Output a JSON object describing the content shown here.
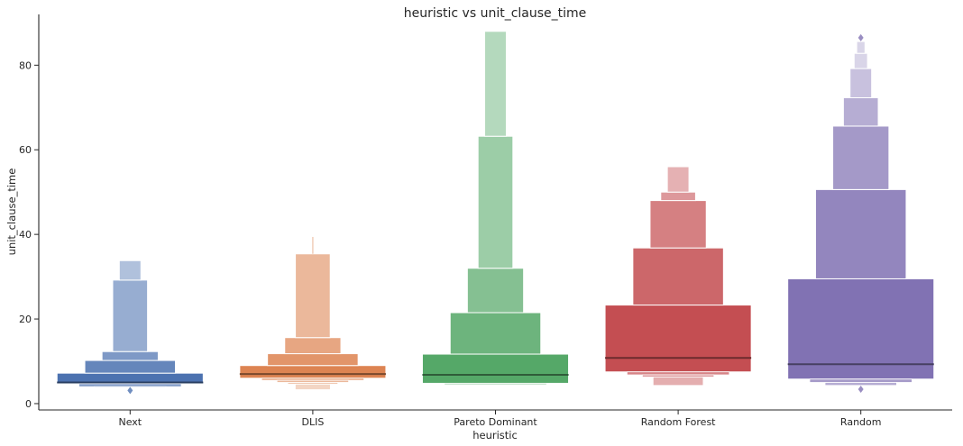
{
  "chart_data": {
    "type": "boxen",
    "title": "heuristic vs unit_clause_time",
    "xlabel": "heuristic",
    "ylabel": "unit_clause_time",
    "ylim": [
      -1.5,
      92
    ],
    "yticks": [
      0,
      20,
      40,
      60,
      80
    ],
    "grid": false,
    "categories": [
      "Next",
      "DLIS",
      "Pareto Dominant",
      "Random Forest",
      "Random"
    ],
    "colors": [
      "#4c72b0",
      "#dd8452",
      "#55a868",
      "#c44e52",
      "#8172b3"
    ],
    "series": [
      {
        "category": "Next",
        "median": 5.0,
        "levels": [
          [
            4.7,
            7.2
          ],
          [
            7.2,
            10.2
          ],
          [
            10.2,
            12.3
          ],
          [
            12.3,
            29.2
          ],
          [
            29.2,
            33.8
          ]
        ],
        "lower_tail": [
          [
            4.0,
            4.7
          ],
          [
            3.8,
            4.0
          ]
        ],
        "whisker": null,
        "outliers": [
          3.1
        ]
      },
      {
        "category": "DLIS",
        "median": 7.0,
        "levels": [
          [
            6.0,
            9.0
          ],
          [
            9.0,
            11.8
          ],
          [
            11.8,
            15.6
          ],
          [
            15.6,
            35.4
          ]
        ],
        "lower_tail": [
          [
            5.5,
            6.0
          ],
          [
            5.0,
            5.5
          ],
          [
            4.6,
            5.0
          ],
          [
            3.3,
            4.6
          ]
        ],
        "whisker": [
          35.4,
          39.4
        ],
        "outliers": []
      },
      {
        "category": "Pareto Dominant",
        "median": 6.8,
        "levels": [
          [
            4.8,
            11.7
          ],
          [
            11.7,
            21.5
          ],
          [
            21.5,
            32.0
          ],
          [
            32.0,
            63.2
          ],
          [
            63.2,
            88.0
          ]
        ],
        "lower_tail": [
          [
            4.5,
            4.8
          ]
        ],
        "whisker": null,
        "outliers": []
      },
      {
        "category": "Random Forest",
        "median": 10.8,
        "levels": [
          [
            7.5,
            23.3
          ],
          [
            23.3,
            36.8
          ],
          [
            36.8,
            48.0
          ],
          [
            48.0,
            50.0
          ],
          [
            50.0,
            56.0
          ]
        ],
        "lower_tail": [
          [
            6.8,
            7.5
          ],
          [
            6.3,
            6.8
          ],
          [
            4.3,
            6.3
          ]
        ],
        "whisker": null,
        "outliers": []
      },
      {
        "category": "Random",
        "median": 9.3,
        "levels": [
          [
            5.8,
            29.5
          ],
          [
            29.5,
            50.6
          ],
          [
            50.6,
            65.6
          ],
          [
            65.6,
            72.3
          ],
          [
            72.3,
            79.2
          ],
          [
            79.2,
            82.8
          ],
          [
            82.8,
            85.6
          ]
        ],
        "lower_tail": [
          [
            5.0,
            5.8
          ],
          [
            4.3,
            5.0
          ]
        ],
        "whisker": null,
        "outliers": [
          3.4,
          86.5
        ]
      }
    ]
  }
}
